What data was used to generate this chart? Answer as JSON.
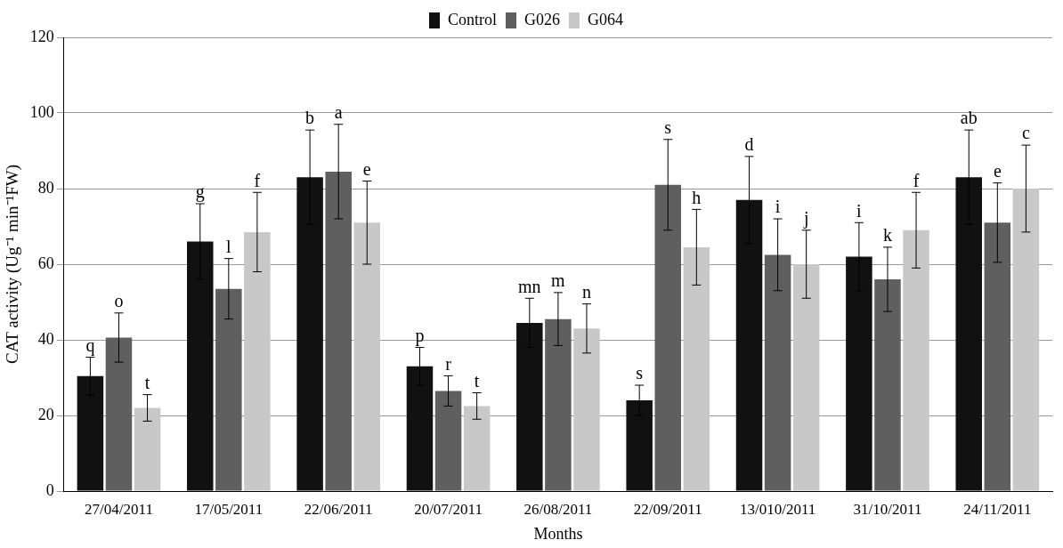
{
  "chart_data": {
    "type": "bar",
    "xlabel": "Months",
    "ylabel": "CAT activity (Ug⁻¹ min⁻¹FW)",
    "categories": [
      "27/04/2011",
      "17/05/2011",
      "22/06/2011",
      "20/07/2011",
      "26/08/2011",
      "22/09/2011",
      "13/010/2011",
      "31/10/2011",
      "24/11/2011"
    ],
    "series": [
      {
        "name": "Control",
        "color": "#111111",
        "values": [
          30.4,
          66,
          83,
          33,
          44.5,
          24,
          77,
          62,
          83
        ],
        "errors": [
          5,
          10,
          12.5,
          5,
          6.5,
          4,
          11.5,
          9,
          12.5
        ],
        "value_labels": [
          "q",
          "g",
          "b",
          "p",
          "mn",
          "s",
          "d",
          "i",
          "ab"
        ]
      },
      {
        "name": "G026",
        "color": "#5f5f5f",
        "values": [
          40.6,
          53.5,
          84.5,
          26.5,
          45.5,
          81,
          62.5,
          56,
          71
        ],
        "errors": [
          6.5,
          8,
          12.5,
          4,
          7,
          12,
          9.5,
          8.5,
          10.5
        ],
        "value_labels": [
          "o",
          "l",
          "a",
          "r",
          "m",
          "s",
          "i",
          "k",
          "e"
        ]
      },
      {
        "name": "G064",
        "color": "#c8c8c8",
        "values": [
          22,
          68.5,
          71,
          22.5,
          43,
          64.5,
          60,
          69,
          80
        ],
        "errors": [
          3.5,
          10.5,
          11,
          3.5,
          6.5,
          10,
          9,
          10,
          11.5
        ],
        "value_labels": [
          "t",
          "f",
          "e",
          "t",
          "n",
          "h",
          "j",
          "f",
          "c"
        ]
      }
    ],
    "ylim": [
      0,
      120
    ],
    "yticks": [
      0,
      20,
      40,
      60,
      80,
      100,
      120
    ],
    "grid": "y",
    "legend": "top"
  }
}
